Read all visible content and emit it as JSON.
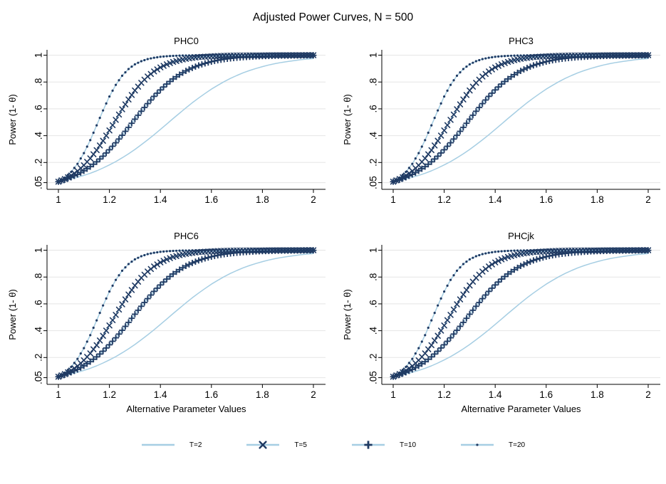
{
  "figure": {
    "title": "Adjusted Power Curves, N = 500"
  },
  "colors": {
    "line": "#a6cee3",
    "marker": "#1f3a63",
    "grid": "#e5e5e5",
    "axis": "#000000",
    "text": "#000000"
  },
  "chart_data": {
    "type": "line",
    "title": "Adjusted Power Curves, N = 500",
    "panels": [
      "PHC0",
      "PHC3",
      "PHC6",
      "PHCjk"
    ],
    "xlabel": "Alternative Parameter Values",
    "ylabel": "Power (1- θ)",
    "xlim": [
      1,
      2
    ],
    "ylim": [
      0,
      1.04
    ],
    "grid": true,
    "legend_position": "bottom",
    "x_ticks": [
      {
        "v": 1,
        "label": "1"
      },
      {
        "v": 1.2,
        "label": "1.2"
      },
      {
        "v": 1.4,
        "label": "1.4"
      },
      {
        "v": 1.6,
        "label": "1.6"
      },
      {
        "v": 1.8,
        "label": "1.8"
      },
      {
        "v": 2,
        "label": "2"
      }
    ],
    "y_ticks": [
      {
        "v": 0.05,
        "label": ".05"
      },
      {
        "v": 0.2,
        "label": ".2"
      },
      {
        "v": 0.4,
        "label": ".4"
      },
      {
        "v": 0.6,
        "label": ".6"
      },
      {
        "v": 0.8,
        "label": ".8"
      },
      {
        "v": 1,
        "label": "1"
      }
    ],
    "x": [
      1,
      1.025,
      1.05,
      1.075,
      1.1,
      1.125,
      1.15,
      1.175,
      1.2,
      1.225,
      1.25,
      1.275,
      1.3,
      1.325,
      1.35,
      1.375,
      1.4,
      1.425,
      1.45,
      1.475,
      1.5,
      1.525,
      1.55,
      1.575,
      1.6,
      1.625,
      1.65,
      1.675,
      1.7,
      1.725,
      1.75,
      1.775,
      1.8,
      1.825,
      1.85,
      1.875,
      1.9,
      1.925,
      1.95,
      1.975,
      2
    ],
    "series": [
      {
        "name": "T=2",
        "marker": "none",
        "values": [
          0.057,
          0.067,
          0.078,
          0.09,
          0.104,
          0.12,
          0.138,
          0.159,
          0.182,
          0.207,
          0.235,
          0.265,
          0.297,
          0.332,
          0.369,
          0.407,
          0.447,
          0.487,
          0.528,
          0.568,
          0.607,
          0.645,
          0.681,
          0.715,
          0.747,
          0.776,
          0.803,
          0.827,
          0.849,
          0.869,
          0.886,
          0.901,
          0.915,
          0.927,
          0.937,
          0.946,
          0.953,
          0.96,
          0.966,
          0.971,
          0.975
        ]
      },
      {
        "name": "T=5",
        "marker": "x",
        "values": [
          0.057,
          0.077,
          0.103,
          0.137,
          0.179,
          0.231,
          0.292,
          0.362,
          0.439,
          0.518,
          0.597,
          0.67,
          0.737,
          0.794,
          0.841,
          0.879,
          0.909,
          0.932,
          0.95,
          0.963,
          0.973,
          0.98,
          0.986,
          0.989,
          0.992,
          0.994,
          0.996,
          0.997,
          0.998,
          0.998,
          0.999,
          0.999,
          0.999,
          1,
          1,
          1,
          1,
          1,
          1,
          1,
          1
        ]
      },
      {
        "name": "T=10",
        "marker": "plus",
        "values": [
          0.057,
          0.072,
          0.09,
          0.111,
          0.138,
          0.169,
          0.205,
          0.247,
          0.295,
          0.347,
          0.403,
          0.462,
          0.523,
          0.582,
          0.639,
          0.693,
          0.741,
          0.785,
          0.823,
          0.855,
          0.883,
          0.905,
          0.924,
          0.939,
          0.952,
          0.962,
          0.97,
          0.976,
          0.981,
          0.985,
          0.988,
          0.991,
          0.993,
          0.994,
          0.996,
          0.997,
          0.997,
          0.998,
          0.998,
          0.999,
          0.999
        ]
      },
      {
        "name": "T=20",
        "marker": "dot",
        "values": [
          0.057,
          0.087,
          0.13,
          0.19,
          0.27,
          0.367,
          0.477,
          0.588,
          0.692,
          0.779,
          0.847,
          0.897,
          0.932,
          0.955,
          0.971,
          0.981,
          0.988,
          0.992,
          0.995,
          0.997,
          0.998,
          0.999,
          0.999,
          1,
          1,
          1,
          1,
          1,
          1,
          1,
          1,
          1,
          1,
          1,
          1,
          1,
          1,
          1,
          1,
          1,
          1
        ]
      }
    ]
  }
}
